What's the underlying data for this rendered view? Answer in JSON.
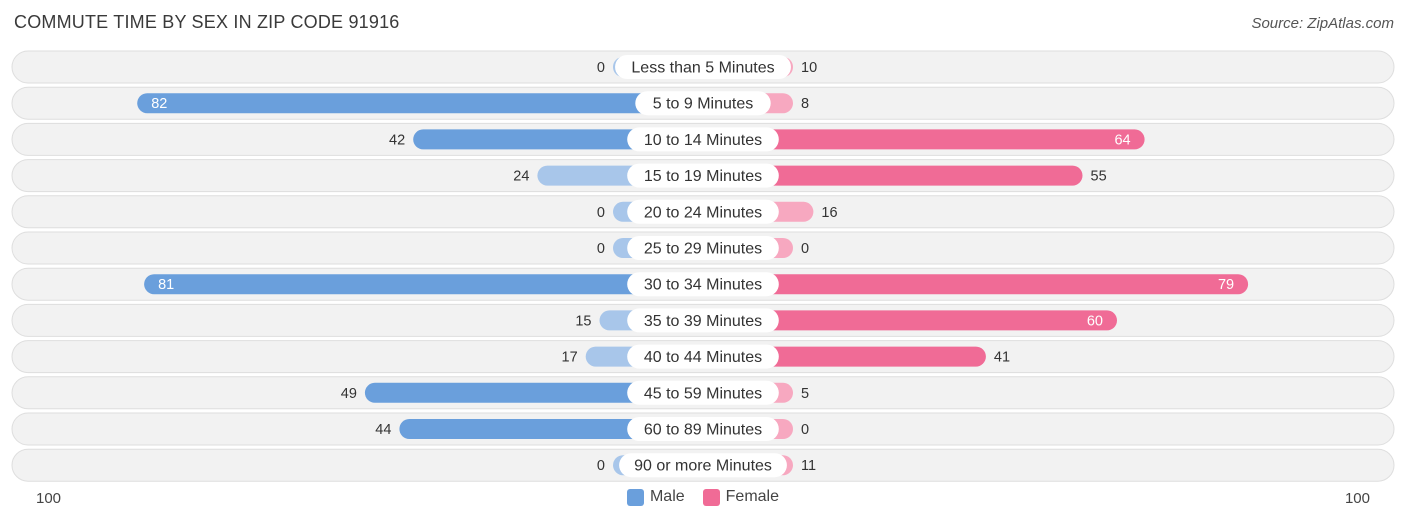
{
  "header": {
    "title": "COMMUTE TIME BY SEX IN ZIP CODE 91916",
    "source": "Source: ZipAtlas.com"
  },
  "legend": {
    "male_label": "Male",
    "female_label": "Female"
  },
  "axis": {
    "left_label": "100",
    "right_label": "100"
  },
  "colors": {
    "male_strong": "#6a9fdc",
    "male_light": "#a8c6ea",
    "female_strong": "#f06b96",
    "female_light": "#f7a8c0",
    "row_bg": "#f2f2f2",
    "row_border": "#dedede"
  },
  "chart_data": {
    "type": "bar",
    "orientation": "diverging-horizontal",
    "title": "COMMUTE TIME BY SEX IN ZIP CODE 91916",
    "categories": [
      "Less than 5 Minutes",
      "5 to 9 Minutes",
      "10 to 14 Minutes",
      "15 to 19 Minutes",
      "20 to 24 Minutes",
      "25 to 29 Minutes",
      "30 to 34 Minutes",
      "35 to 39 Minutes",
      "40 to 44 Minutes",
      "45 to 59 Minutes",
      "60 to 89 Minutes",
      "90 or more Minutes"
    ],
    "series": [
      {
        "name": "Male",
        "values": [
          0,
          82,
          42,
          24,
          0,
          0,
          81,
          15,
          17,
          49,
          44,
          0
        ]
      },
      {
        "name": "Female",
        "values": [
          10,
          8,
          64,
          55,
          16,
          0,
          79,
          60,
          41,
          5,
          0,
          11
        ]
      }
    ],
    "xlim": [
      -100,
      100
    ],
    "legend_position": "bottom-center"
  }
}
